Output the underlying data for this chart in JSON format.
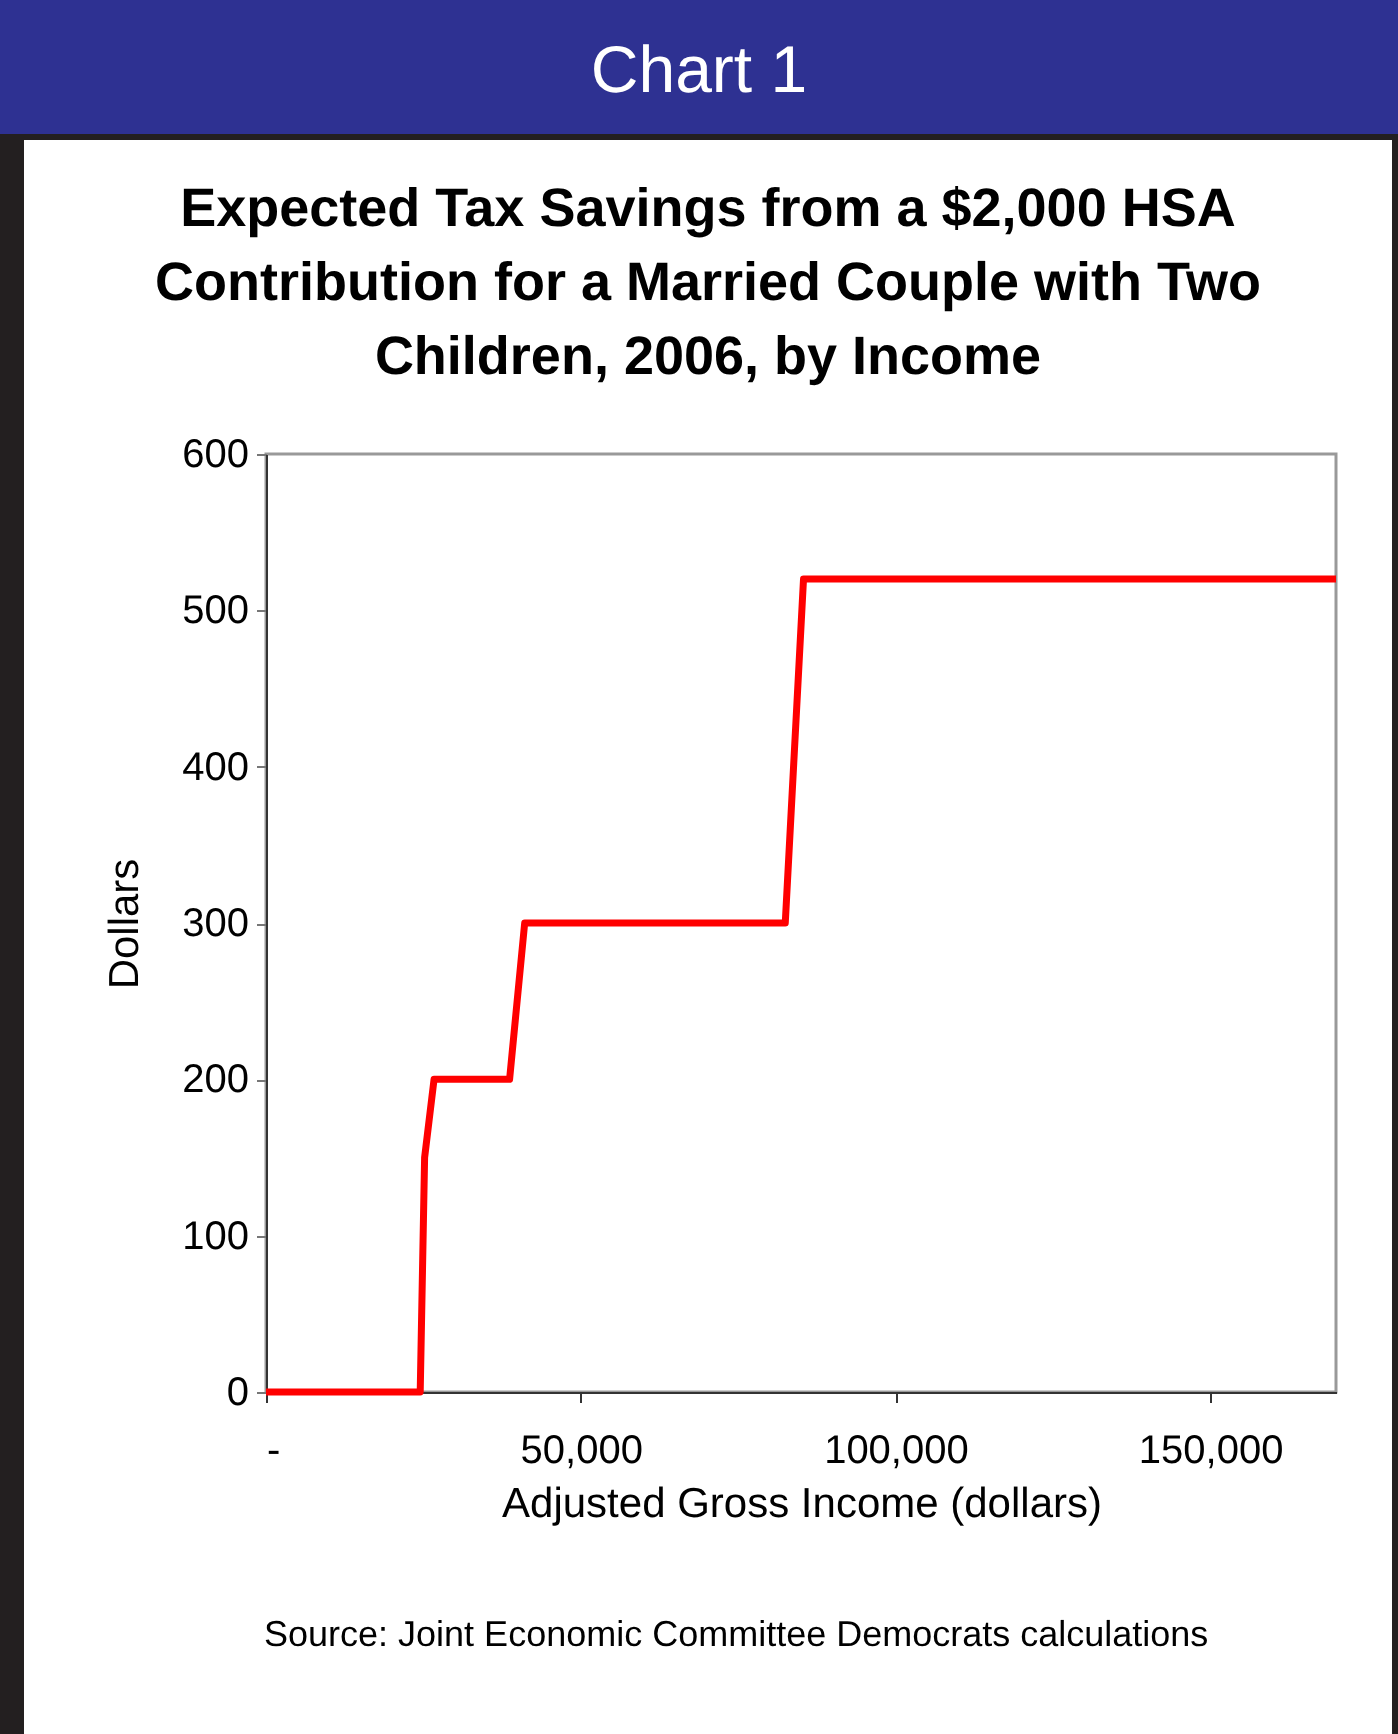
{
  "chart_data": {
    "type": "line",
    "title": "Expected Tax Savings from a $2,000 HSA Contribution for a Married Couple with Two Children, 2006, by Income",
    "xlabel": "Adjusted Gross Income (dollars)",
    "ylabel": "Dollars",
    "annotations": [
      "Chart 1",
      "Source: Joint Economic Committee Democrats calculations"
    ],
    "xlim": [
      0,
      170000
    ],
    "xticks": [
      {
        "value": 0,
        "label": "-"
      },
      {
        "value": 50000,
        "label": "50,000"
      },
      {
        "value": 100000,
        "label": "100,000"
      },
      {
        "value": 150000,
        "label": "150,000"
      }
    ],
    "ylim": [
      0,
      600
    ],
    "yticks": [
      0,
      100,
      200,
      300,
      400,
      500,
      600
    ],
    "grid": false,
    "legend": false,
    "marker": "none",
    "line_style": "solid",
    "series": [
      {
        "color": "#ff0000",
        "x": [
          0,
          24500,
          25200,
          26700,
          38700,
          41100,
          82500,
          85400,
          170000
        ],
        "values": [
          0,
          0,
          150,
          200,
          200,
          300,
          300,
          520,
          520
        ]
      }
    ]
  }
}
